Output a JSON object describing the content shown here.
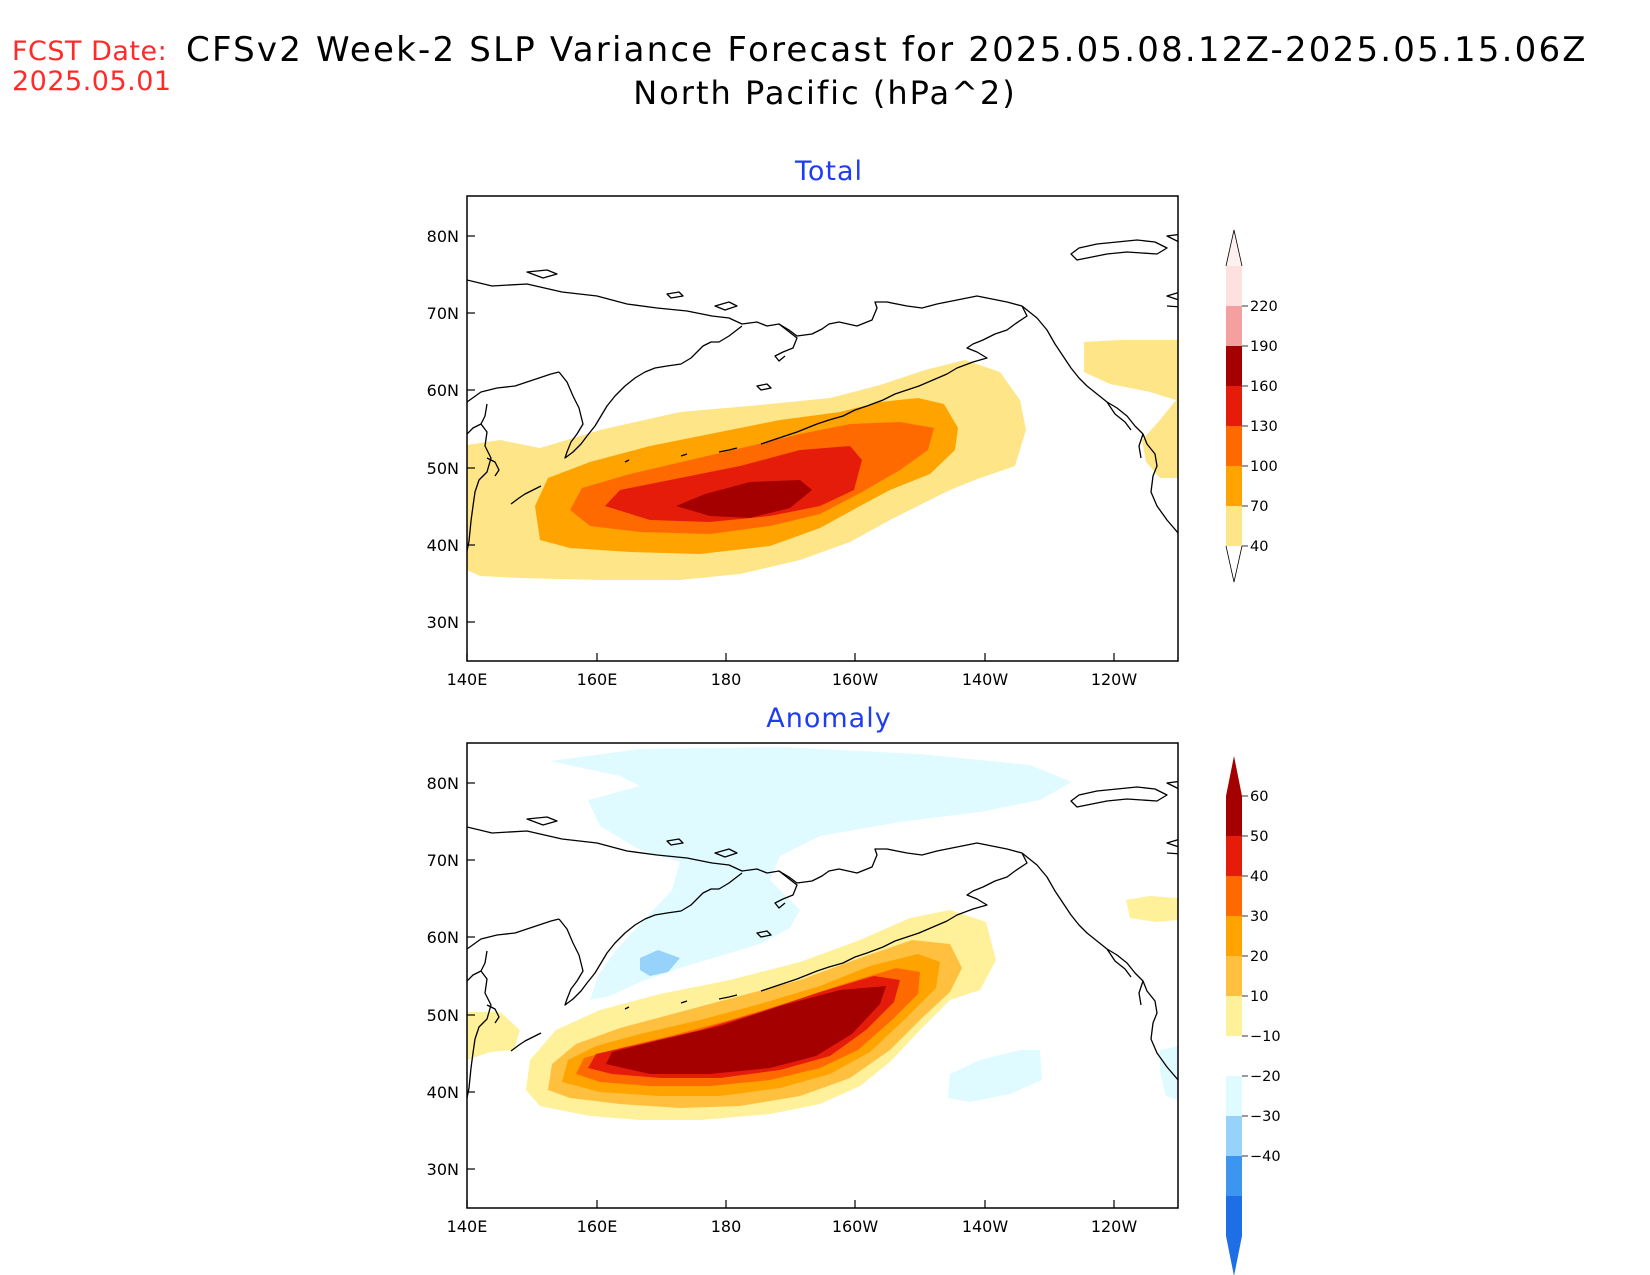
{
  "header": {
    "fcst_label": "FCST Date:",
    "fcst_date": "2025.05.01",
    "title": "CFSv2 Week-2 SLP Variance Forecast for 2025.05.08.12Z-2025.05.15.06Z",
    "subtitle": "North Pacific (hPa^2)"
  },
  "axes": {
    "lat_labels": [
      "80N",
      "70N",
      "60N",
      "50N",
      "40N",
      "30N"
    ],
    "lon_labels": [
      "140E",
      "160E",
      "180",
      "160W",
      "140W",
      "120W"
    ]
  },
  "panels": [
    {
      "title": "Total",
      "colorbar": {
        "levels": [
          "40",
          "70",
          "100",
          "130",
          "160",
          "190",
          "220"
        ],
        "colors": [
          "#fee688",
          "#ffa300",
          "#ff6a00",
          "#e61c0a",
          "#a50000",
          "#f4a0a0",
          "#fde0e0"
        ]
      }
    },
    {
      "title": "Anomaly",
      "colorbar": {
        "levels": [
          "60",
          "50",
          "40",
          "30",
          "20",
          "10",
          "−10",
          "−20",
          "−30",
          "−40"
        ],
        "colors": [
          "#a50000",
          "#e61c0a",
          "#ff6a00",
          "#ffa300",
          "#ffc040",
          "#fff09a",
          "#ffffff",
          "#e0fbff",
          "#96d2fa",
          "#3c96f0",
          "#1e6ee6"
        ]
      }
    }
  ]
}
